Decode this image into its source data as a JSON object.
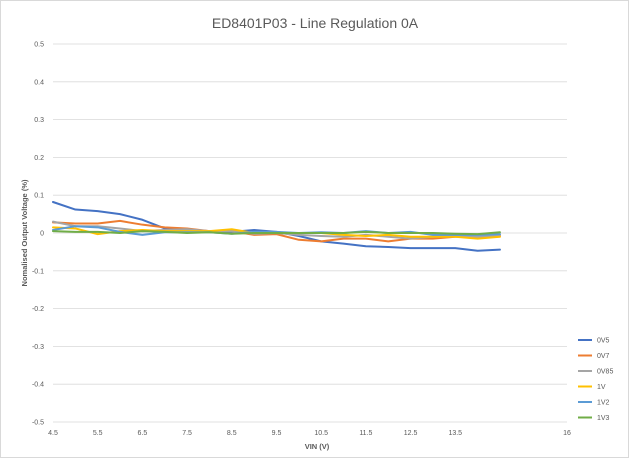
{
  "chart_data": {
    "type": "line",
    "title": "ED8401P03 - Line Regulation 0A",
    "xlabel": "VIN (V)",
    "ylabel": "Nomalised Output Voltage (%)",
    "xlim": [
      4.5,
      16
    ],
    "ylim": [
      -0.5,
      0.5
    ],
    "x_tick_labels": [
      "4.5",
      "5.5",
      "6.5",
      "7.5",
      "8.5",
      "9.5",
      "10.5",
      "11.5",
      "12.5",
      "13.5",
      "16"
    ],
    "y_tick_labels": [
      "0.5",
      "0.4",
      "0.3",
      "0.2",
      "0.1",
      "0",
      "-0.1",
      "-0.2",
      "-0.3",
      "-0.4",
      "-0.5"
    ],
    "grid": "horizontal",
    "legend_position": "right",
    "x": [
      4.5,
      5,
      5.5,
      6,
      6.5,
      7,
      7.5,
      8,
      8.5,
      9,
      9.5,
      10,
      10.5,
      11,
      11.5,
      12,
      12.5,
      13,
      13.5,
      14,
      14.5
    ],
    "series": [
      {
        "name": "0V5",
        "color": "#4472C4",
        "values": [
          0.082,
          0.062,
          0.058,
          0.05,
          0.035,
          0.012,
          0.008,
          0.005,
          0.003,
          0.008,
          0.003,
          -0.008,
          -0.022,
          -0.028,
          -0.035,
          -0.037,
          -0.04,
          -0.04,
          -0.04,
          -0.047,
          -0.044
        ]
      },
      {
        "name": "0V7",
        "color": "#ED7D31",
        "values": [
          0.028,
          0.025,
          0.025,
          0.032,
          0.022,
          0.015,
          0.012,
          0.005,
          0.005,
          -0.005,
          -0.003,
          -0.018,
          -0.022,
          -0.015,
          -0.015,
          -0.022,
          -0.015,
          -0.015,
          -0.01,
          -0.01,
          -0.008
        ]
      },
      {
        "name": "0V85",
        "color": "#A5A5A5",
        "values": [
          0.03,
          0.018,
          0.018,
          0.012,
          0.005,
          0.008,
          0.01,
          0.005,
          0.005,
          -0.002,
          0.0,
          -0.005,
          -0.008,
          -0.01,
          -0.005,
          -0.01,
          -0.015,
          -0.01,
          -0.008,
          -0.01,
          -0.005
        ]
      },
      {
        "name": "1V",
        "color": "#FFC000",
        "values": [
          0.015,
          0.012,
          -0.003,
          0.005,
          0.008,
          0.005,
          0.005,
          0.005,
          0.01,
          0.0,
          0.0,
          0.0,
          0.0,
          -0.005,
          -0.008,
          -0.005,
          -0.01,
          -0.01,
          -0.01,
          -0.015,
          -0.01
        ]
      },
      {
        "name": "1V2",
        "color": "#5B9BD5",
        "values": [
          0.008,
          0.018,
          0.015,
          0.003,
          -0.005,
          0.002,
          0.002,
          0.002,
          -0.002,
          0.003,
          0.003,
          0.0,
          0.002,
          0.0,
          0.005,
          0.0,
          0.003,
          -0.005,
          -0.005,
          -0.005,
          -0.003
        ]
      },
      {
        "name": "1V3",
        "color": "#70AD47",
        "values": [
          0.005,
          0.003,
          0.003,
          0.0,
          0.005,
          0.003,
          0.0,
          0.002,
          -0.002,
          0.0,
          0.0,
          0.0,
          0.0,
          0.0,
          0.003,
          0.0,
          0.0,
          0.0,
          -0.002,
          -0.003,
          0.002
        ]
      }
    ]
  }
}
